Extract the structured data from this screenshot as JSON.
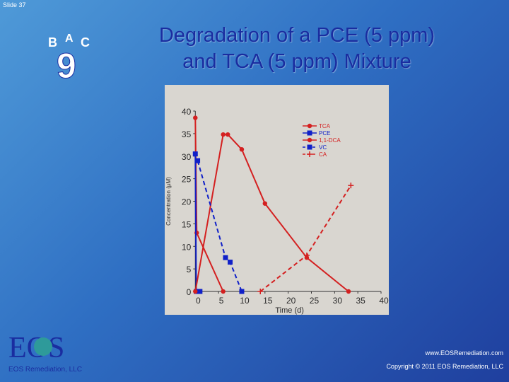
{
  "slide": {
    "number_label": "Slide 37"
  },
  "title": {
    "line1": "Degradation of a PCE (5 ppm)",
    "line2": "and TCA (5 ppm) Mixture"
  },
  "logos": {
    "bac": {
      "letters": [
        "B",
        "A",
        "C"
      ],
      "number": "9"
    },
    "eos": {
      "mark": "EOS",
      "caption": "EOS Remediation, LLC"
    }
  },
  "footer": {
    "url": "www.EOSRemediation.com",
    "copyright": "Copyright © 2011 EOS Remediation, LLC"
  },
  "colors": {
    "red": "#d42020",
    "blue": "#1020c8",
    "title": "#1a2da0"
  },
  "chart_data": {
    "type": "line",
    "xlabel": "Time (d)",
    "ylabel": "Concentration (µM)",
    "xlim": [
      -0.5,
      40
    ],
    "ylim": [
      0,
      40
    ],
    "xticks": [
      0,
      5,
      10,
      15,
      20,
      25,
      30,
      35,
      40
    ],
    "yticks": [
      0,
      5,
      10,
      15,
      20,
      25,
      30,
      35,
      40
    ],
    "grid": false,
    "legend_position": "top-right",
    "series": [
      {
        "name": "TCA",
        "color": "#d42020",
        "dash": false,
        "marker": "circle",
        "points": [
          [
            0,
            38.5
          ],
          [
            0.3,
            13
          ],
          [
            6,
            0
          ]
        ]
      },
      {
        "name": "PCE",
        "color": "#1020c8",
        "dash": false,
        "marker": "square",
        "points": [
          [
            0,
            30.5
          ],
          [
            0.2,
            0
          ],
          [
            1,
            0
          ]
        ]
      },
      {
        "name": "1,1-DCA",
        "color": "#d42020",
        "dash": false,
        "marker": "circle",
        "points": [
          [
            0,
            0
          ],
          [
            6,
            34.8
          ],
          [
            7,
            34.8
          ],
          [
            10,
            31.5
          ],
          [
            15,
            19.5
          ],
          [
            24,
            7.5
          ],
          [
            33,
            0
          ]
        ]
      },
      {
        "name": "VC",
        "color": "#1020c8",
        "dash": true,
        "marker": "square",
        "points": [
          [
            0.5,
            29
          ],
          [
            6.5,
            7.5
          ],
          [
            7.5,
            6.5
          ],
          [
            10,
            0
          ]
        ]
      },
      {
        "name": "CA",
        "color": "#d42020",
        "dash": true,
        "marker": "cross",
        "points": [
          [
            14,
            0
          ],
          [
            24,
            8
          ],
          [
            33.5,
            23.5
          ]
        ]
      }
    ]
  }
}
